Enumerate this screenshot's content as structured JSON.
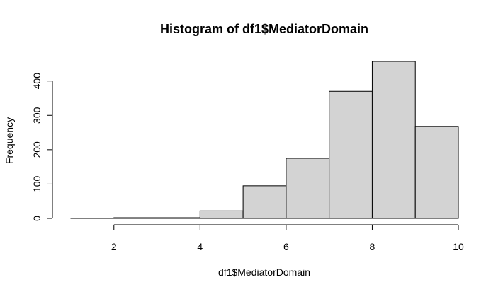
{
  "chart_data": {
    "type": "bar",
    "title": "Histogram of df1$MediatorDomain",
    "xlabel": "df1$MediatorDomain",
    "ylabel": "Frequency",
    "bins": [
      [
        1,
        2
      ],
      [
        2,
        3
      ],
      [
        3,
        4
      ],
      [
        4,
        5
      ],
      [
        5,
        6
      ],
      [
        6,
        7
      ],
      [
        7,
        8
      ],
      [
        8,
        9
      ],
      [
        9,
        10
      ]
    ],
    "values": [
      1,
      2,
      2,
      22,
      95,
      175,
      370,
      457,
      268
    ],
    "xlim": [
      1,
      10
    ],
    "ylim": [
      0,
      457
    ],
    "xticks": [
      2,
      4,
      6,
      8,
      10
    ],
    "yticks": [
      0,
      100,
      200,
      300,
      400
    ],
    "bar_color": "#d3d3d3",
    "grid": false,
    "legend": "none"
  }
}
